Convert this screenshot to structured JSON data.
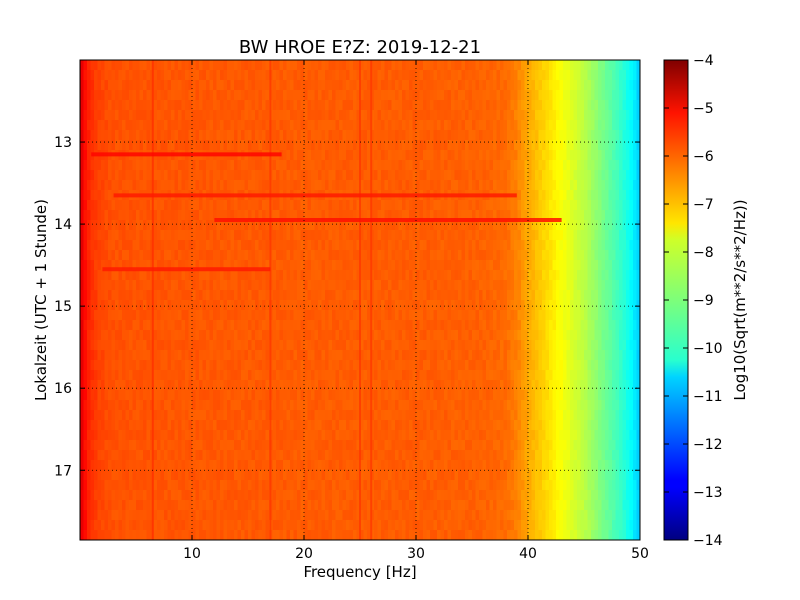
{
  "chart_data": {
    "type": "heatmap",
    "title": "BW HROE E?Z: 2019-12-21",
    "xlabel": "Frequency [Hz]",
    "ylabel": "Lokalzeit (UTC + 1 Stunde)",
    "xlim": [
      0,
      50
    ],
    "ylim": [
      17.85,
      12.0
    ],
    "y_inverted": true,
    "x_ticks": [
      10,
      20,
      30,
      40,
      50
    ],
    "y_ticks": [
      13,
      14,
      15,
      16,
      17
    ],
    "grid": true,
    "colormap": "jet",
    "colorbar": {
      "label": "Log10(Sqrt(m**2/s**2/Hz))",
      "range": [
        -14,
        -4
      ],
      "ticks": [
        -4,
        -5,
        -6,
        -7,
        -8,
        -9,
        -10,
        -11,
        -12,
        -13,
        -14
      ]
    },
    "spectrum_profile_freq_hz": [
      0,
      0.3,
      0.6,
      1.0,
      1.6,
      3,
      10,
      20,
      30,
      36,
      38,
      39,
      40,
      41,
      42,
      43,
      44,
      45,
      46,
      47,
      48,
      49,
      49.6,
      50
    ],
    "spectrum_profile_level": [
      -4.9,
      -5.2,
      -5.5,
      -5.7,
      -5.9,
      -6.05,
      -6.1,
      -6.15,
      -6.15,
      -6.2,
      -6.3,
      -6.5,
      -6.9,
      -7.2,
      -7.5,
      -7.8,
      -8.1,
      -8.4,
      -8.8,
      -9.2,
      -9.6,
      -10.1,
      -10.5,
      -10.8
    ],
    "vertical_lines_hz": [
      6.5,
      17,
      25,
      26
    ],
    "horizontal_bands": [
      {
        "t": 13.15,
        "f_from": 1,
        "f_to": 18,
        "level": -5.3
      },
      {
        "t": 13.65,
        "f_from": 3,
        "f_to": 39,
        "level": -5.5
      },
      {
        "t": 13.95,
        "f_from": 12,
        "f_to": 43,
        "level": -5.4
      },
      {
        "t": 14.55,
        "f_from": 2,
        "f_to": 17,
        "level": -5.5
      }
    ]
  }
}
